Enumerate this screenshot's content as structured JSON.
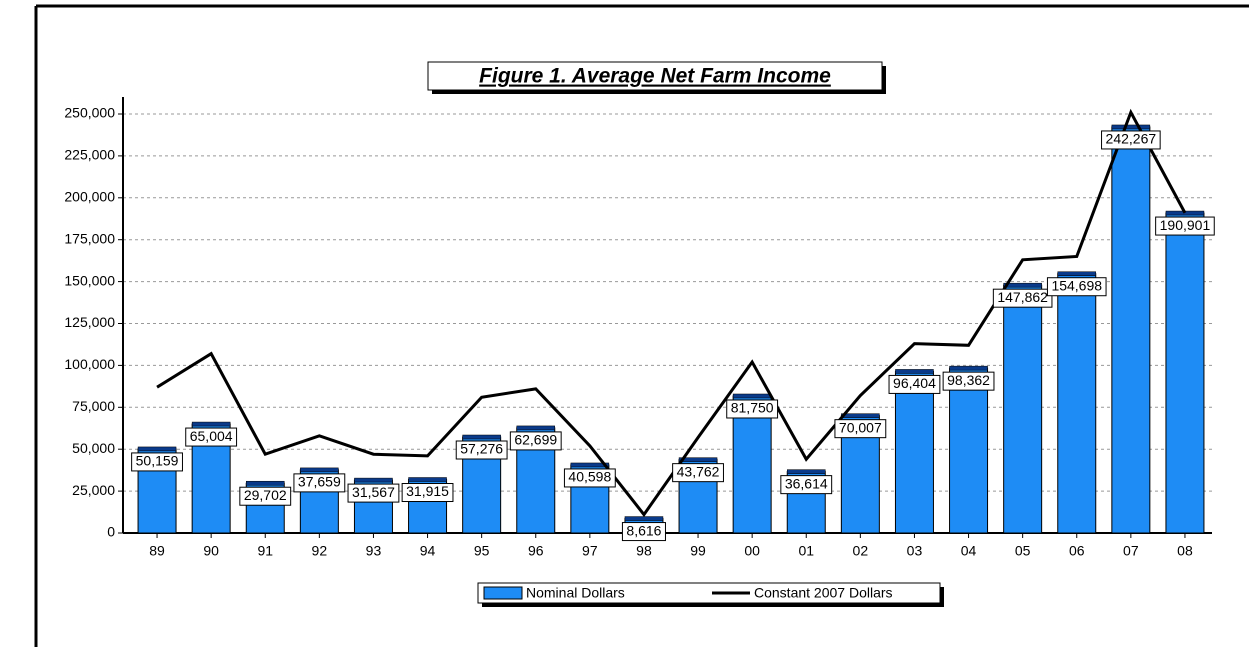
{
  "chart_data": {
    "type": "bar",
    "title": "Figure 1. Average Net Farm Income",
    "categories": [
      "89",
      "90",
      "91",
      "92",
      "93",
      "94",
      "95",
      "96",
      "97",
      "98",
      "99",
      "00",
      "01",
      "02",
      "03",
      "04",
      "05",
      "06",
      "07",
      "08"
    ],
    "series": [
      {
        "name": "Nominal Dollars",
        "type": "bar",
        "color": "#1e8cf5",
        "values": [
          50159,
          65004,
          29702,
          37659,
          31567,
          31915,
          57276,
          62699,
          40598,
          8616,
          43762,
          81750,
          36614,
          70007,
          96404,
          98362,
          147862,
          154698,
          242267,
          190901
        ],
        "value_labels": [
          "50,159",
          "65,004",
          "29,702",
          "37,659",
          "31,567",
          "31,915",
          "57,276",
          "62,699",
          "40,598",
          "8,616",
          "43,762",
          "81,750",
          "36,614",
          "70,007",
          "96,404",
          "98,362",
          "147,862",
          "154,698",
          "242,267",
          "190,901"
        ]
      },
      {
        "name": "Constant 2007 Dollars",
        "type": "line",
        "color": "#000000",
        "values": [
          87000,
          107000,
          47000,
          58000,
          47000,
          46000,
          81000,
          86000,
          52000,
          11000,
          57000,
          102000,
          44000,
          82000,
          113000,
          112000,
          163000,
          165000,
          251000,
          191000
        ]
      }
    ],
    "ylim": [
      0,
      260000
    ],
    "yticks": [
      0,
      {
        "value": 25000,
        "label": "25,000"
      },
      {
        "value": 50000,
        "label": "50,000"
      },
      {
        "value": 75000,
        "label": "75,000"
      },
      {
        "value": 100000,
        "label": "100,000"
      },
      {
        "value": 125000,
        "label": "125,000"
      },
      {
        "value": 150000,
        "label": "150,000"
      },
      {
        "value": 175000,
        "label": "175,000"
      },
      {
        "value": 200000,
        "label": "200,000"
      },
      {
        "value": 225000,
        "label": "225,000"
      },
      {
        "value": 250000,
        "label": "250,000"
      }
    ],
    "grid": true
  }
}
